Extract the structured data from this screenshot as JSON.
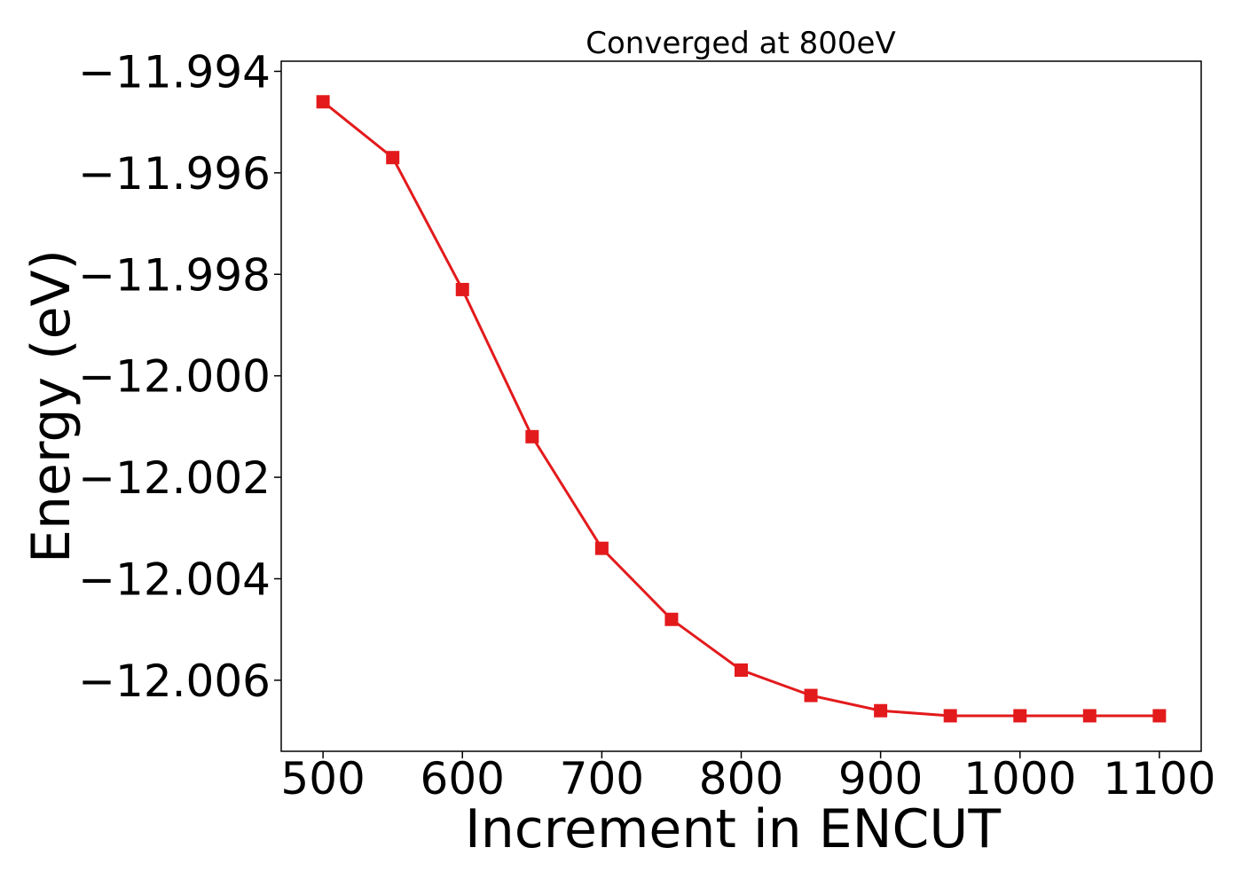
{
  "chart_data": {
    "type": "line",
    "title": "Converged at 800eV",
    "xlabel": "Increment in ENCUT",
    "ylabel": "Energy (eV)",
    "x": [
      500,
      550,
      600,
      650,
      700,
      750,
      800,
      850,
      900,
      950,
      1000,
      1050,
      1100
    ],
    "series": [
      {
        "values": [
          -11.9946,
          -11.9957,
          -11.9983,
          -12.0012,
          -12.0034,
          -12.0048,
          -12.0058,
          -12.0063,
          -12.0066,
          -12.0067,
          -12.0067,
          -12.0067,
          -12.0067
        ]
      }
    ],
    "xlim": [
      470,
      1130
    ],
    "ylim": [
      -12.0074,
      -11.9938
    ],
    "xticks": [
      500,
      600,
      700,
      800,
      900,
      1000,
      1100
    ],
    "xtick_labels": [
      "500",
      "600",
      "700",
      "800",
      "900",
      "1000",
      "1100"
    ],
    "yticks": [
      -11.994,
      -11.996,
      -11.998,
      -12.0,
      -12.002,
      -12.004,
      -12.006
    ],
    "ytick_labels": [
      "−11.994",
      "−11.996",
      "−11.998",
      "−12.000",
      "−12.002",
      "−12.004",
      "−12.006"
    ],
    "grid": false,
    "line_color": "#e31a1c",
    "marker": "square"
  }
}
